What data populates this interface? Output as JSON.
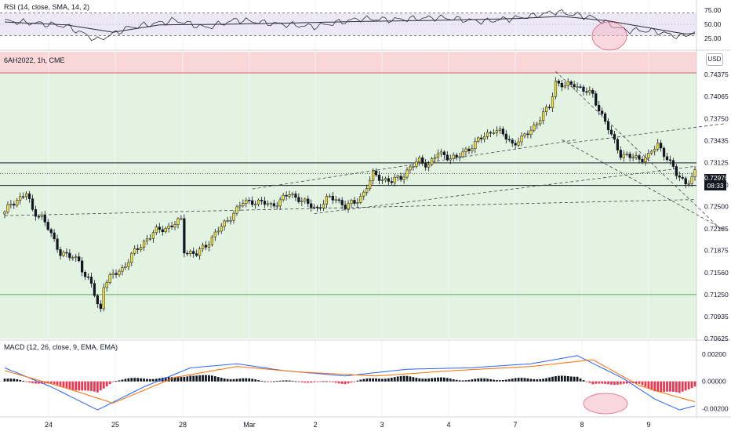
{
  "panes": {
    "rsi": {
      "title": "RSI (14, close, SMA, 14, 2)",
      "ticks": [
        "75.00",
        "50.00",
        "25.00"
      ]
    },
    "price": {
      "title": "6AH2022, 1h, CME",
      "currency": "USD",
      "ticks": [
        "0.74375",
        "0.74065",
        "0.73750",
        "0.73435",
        "0.73125",
        "0.72810",
        "0.72500",
        "0.72185",
        "0.71875",
        "0.71560",
        "0.71250",
        "0.70935",
        "0.70625"
      ],
      "last_price": "0.72970",
      "countdown": "08:33"
    },
    "macd": {
      "title": "MACD (12, 26, close, 9, EMA, EMA)",
      "ticks": [
        "0.00200",
        "0.00000",
        "-0.00200"
      ]
    }
  },
  "time_axis": {
    "labels": [
      "24",
      "25",
      "28",
      "Mar",
      "2",
      "3",
      "4",
      "7",
      "8",
      "9"
    ]
  },
  "colors": {
    "up_body": "#f2e23a",
    "down_body": "#131722",
    "outline": "#131722",
    "green_zone": "#e3f3e1",
    "red_zone": "#f9d6d8",
    "rsi_band": "#ece8f6",
    "macd_pos": "#131722",
    "macd_neg": "#ef3650",
    "macd_line": "#2962ff",
    "signal_line": "#ff6d00",
    "highlight": "#f7b6c6"
  },
  "chart_data": [
    {
      "type": "candlestick",
      "title": "6AH2022, 1h, CME",
      "ylim": [
        0.70625,
        0.747
      ],
      "ytick_labels": [
        "0.74375",
        "0.74065",
        "0.73750",
        "0.73435",
        "0.73125",
        "0.72810",
        "0.72500",
        "0.72185",
        "0.71875",
        "0.71560",
        "0.71250",
        "0.70935",
        "0.70625"
      ],
      "x_day_labels": [
        "24",
        "25",
        "28",
        "Mar",
        "2",
        "3",
        "4",
        "7",
        "8",
        "9"
      ],
      "waypoints": [
        [
          0,
          0.724
        ],
        [
          2,
          0.7255
        ],
        [
          5,
          0.7262
        ],
        [
          7,
          0.7268
        ],
        [
          9,
          0.7245
        ],
        [
          12,
          0.7235
        ],
        [
          15,
          0.721
        ],
        [
          18,
          0.7185
        ],
        [
          21,
          0.7178
        ],
        [
          24,
          0.7175
        ],
        [
          26,
          0.715
        ],
        [
          28,
          0.714
        ],
        [
          30,
          0.711
        ],
        [
          31,
          0.7105
        ],
        [
          32,
          0.714
        ],
        [
          35,
          0.7152
        ],
        [
          38,
          0.7162
        ],
        [
          41,
          0.718
        ],
        [
          44,
          0.7195
        ],
        [
          46,
          0.7205
        ],
        [
          49,
          0.7215
        ],
        [
          52,
          0.722
        ],
        [
          55,
          0.7225
        ],
        [
          57,
          0.723
        ],
        [
          58,
          0.7188
        ],
        [
          62,
          0.7182
        ],
        [
          65,
          0.7195
        ],
        [
          68,
          0.7212
        ],
        [
          71,
          0.7225
        ],
        [
          74,
          0.7242
        ],
        [
          77,
          0.7255
        ],
        [
          80,
          0.7258
        ],
        [
          83,
          0.7255
        ],
        [
          86,
          0.7252
        ],
        [
          89,
          0.7258
        ],
        [
          92,
          0.7268
        ],
        [
          95,
          0.7262
        ],
        [
          98,
          0.7252
        ],
        [
          101,
          0.7248
        ],
        [
          104,
          0.726
        ],
        [
          107,
          0.7262
        ],
        [
          110,
          0.725
        ],
        [
          113,
          0.7255
        ],
        [
          116,
          0.727
        ],
        [
          119,
          0.7295
        ],
        [
          122,
          0.729
        ],
        [
          125,
          0.7285
        ],
        [
          128,
          0.7292
        ],
        [
          131,
          0.7305
        ],
        [
          134,
          0.7315
        ],
        [
          137,
          0.731
        ],
        [
          140,
          0.7325
        ],
        [
          143,
          0.7322
        ],
        [
          146,
          0.7318
        ],
        [
          149,
          0.733
        ],
        [
          152,
          0.734
        ],
        [
          155,
          0.735
        ],
        [
          158,
          0.736
        ],
        [
          161,
          0.7352
        ],
        [
          164,
          0.734
        ],
        [
          167,
          0.7345
        ],
        [
          170,
          0.736
        ],
        [
          173,
          0.7375
        ],
        [
          176,
          0.7392
        ],
        [
          178,
          0.7428
        ],
        [
          181,
          0.742
        ],
        [
          184,
          0.7425
        ],
        [
          187,
          0.7415
        ],
        [
          190,
          0.7408
        ],
        [
          193,
          0.738
        ],
        [
          196,
          0.735
        ],
        [
          199,
          0.7325
        ],
        [
          202,
          0.732
        ],
        [
          205,
          0.7318
        ],
        [
          208,
          0.7322
        ],
        [
          211,
          0.7338
        ],
        [
          214,
          0.732
        ],
        [
          217,
          0.7295
        ],
        [
          220,
          0.7285
        ],
        [
          222,
          0.729
        ],
        [
          223,
          0.7297
        ]
      ],
      "extra_lines": {
        "horizontal": [
          0.7312,
          0.728
        ],
        "dotted": 0.7297
      }
    },
    {
      "type": "line",
      "title": "RSI (14, close, SMA, 14, 2)",
      "ylim": [
        10,
        90
      ],
      "bands": [
        30,
        70
      ],
      "rsi": [
        [
          0,
          56
        ],
        [
          10,
          52
        ],
        [
          20,
          47
        ],
        [
          30,
          22
        ],
        [
          40,
          44
        ],
        [
          55,
          57
        ],
        [
          65,
          44
        ],
        [
          75,
          58
        ],
        [
          85,
          52
        ],
        [
          100,
          46
        ],
        [
          115,
          60
        ],
        [
          125,
          58
        ],
        [
          140,
          62
        ],
        [
          155,
          55
        ],
        [
          170,
          64
        ],
        [
          178,
          72
        ],
        [
          190,
          62
        ],
        [
          200,
          40
        ],
        [
          210,
          38
        ],
        [
          218,
          28
        ],
        [
          223,
          36
        ]
      ],
      "sma": [
        [
          0,
          54
        ],
        [
          20,
          49
        ],
        [
          35,
          36
        ],
        [
          50,
          49
        ],
        [
          70,
          50
        ],
        [
          90,
          52
        ],
        [
          115,
          55
        ],
        [
          140,
          57
        ],
        [
          165,
          60
        ],
        [
          180,
          64
        ],
        [
          195,
          56
        ],
        [
          210,
          42
        ],
        [
          220,
          33
        ],
        [
          223,
          34
        ]
      ]
    },
    {
      "type": "bar+line",
      "title": "MACD (12, 26, close, 9, EMA, EMA)",
      "ylim": [
        -0.0025,
        0.0027
      ],
      "macd": [
        [
          0,
          0.001
        ],
        [
          15,
          -0.0004
        ],
        [
          30,
          -0.0021
        ],
        [
          45,
          -0.0004
        ],
        [
          60,
          0.001
        ],
        [
          75,
          0.0013
        ],
        [
          90,
          0.0008
        ],
        [
          110,
          0.0004
        ],
        [
          130,
          0.0009
        ],
        [
          150,
          0.001
        ],
        [
          170,
          0.0013
        ],
        [
          185,
          0.0019
        ],
        [
          200,
          0.0002
        ],
        [
          210,
          -0.0013
        ],
        [
          218,
          -0.0021
        ],
        [
          223,
          -0.0018
        ]
      ],
      "signal": [
        [
          0,
          0.0008
        ],
        [
          20,
          -0.0005
        ],
        [
          35,
          -0.0016
        ],
        [
          55,
          0.0003
        ],
        [
          75,
          0.0011
        ],
        [
          95,
          0.0007
        ],
        [
          120,
          0.0004
        ],
        [
          145,
          0.0008
        ],
        [
          170,
          0.0011
        ],
        [
          190,
          0.0016
        ],
        [
          205,
          -0.0003
        ],
        [
          215,
          -0.001
        ],
        [
          223,
          -0.0015
        ]
      ]
    }
  ]
}
